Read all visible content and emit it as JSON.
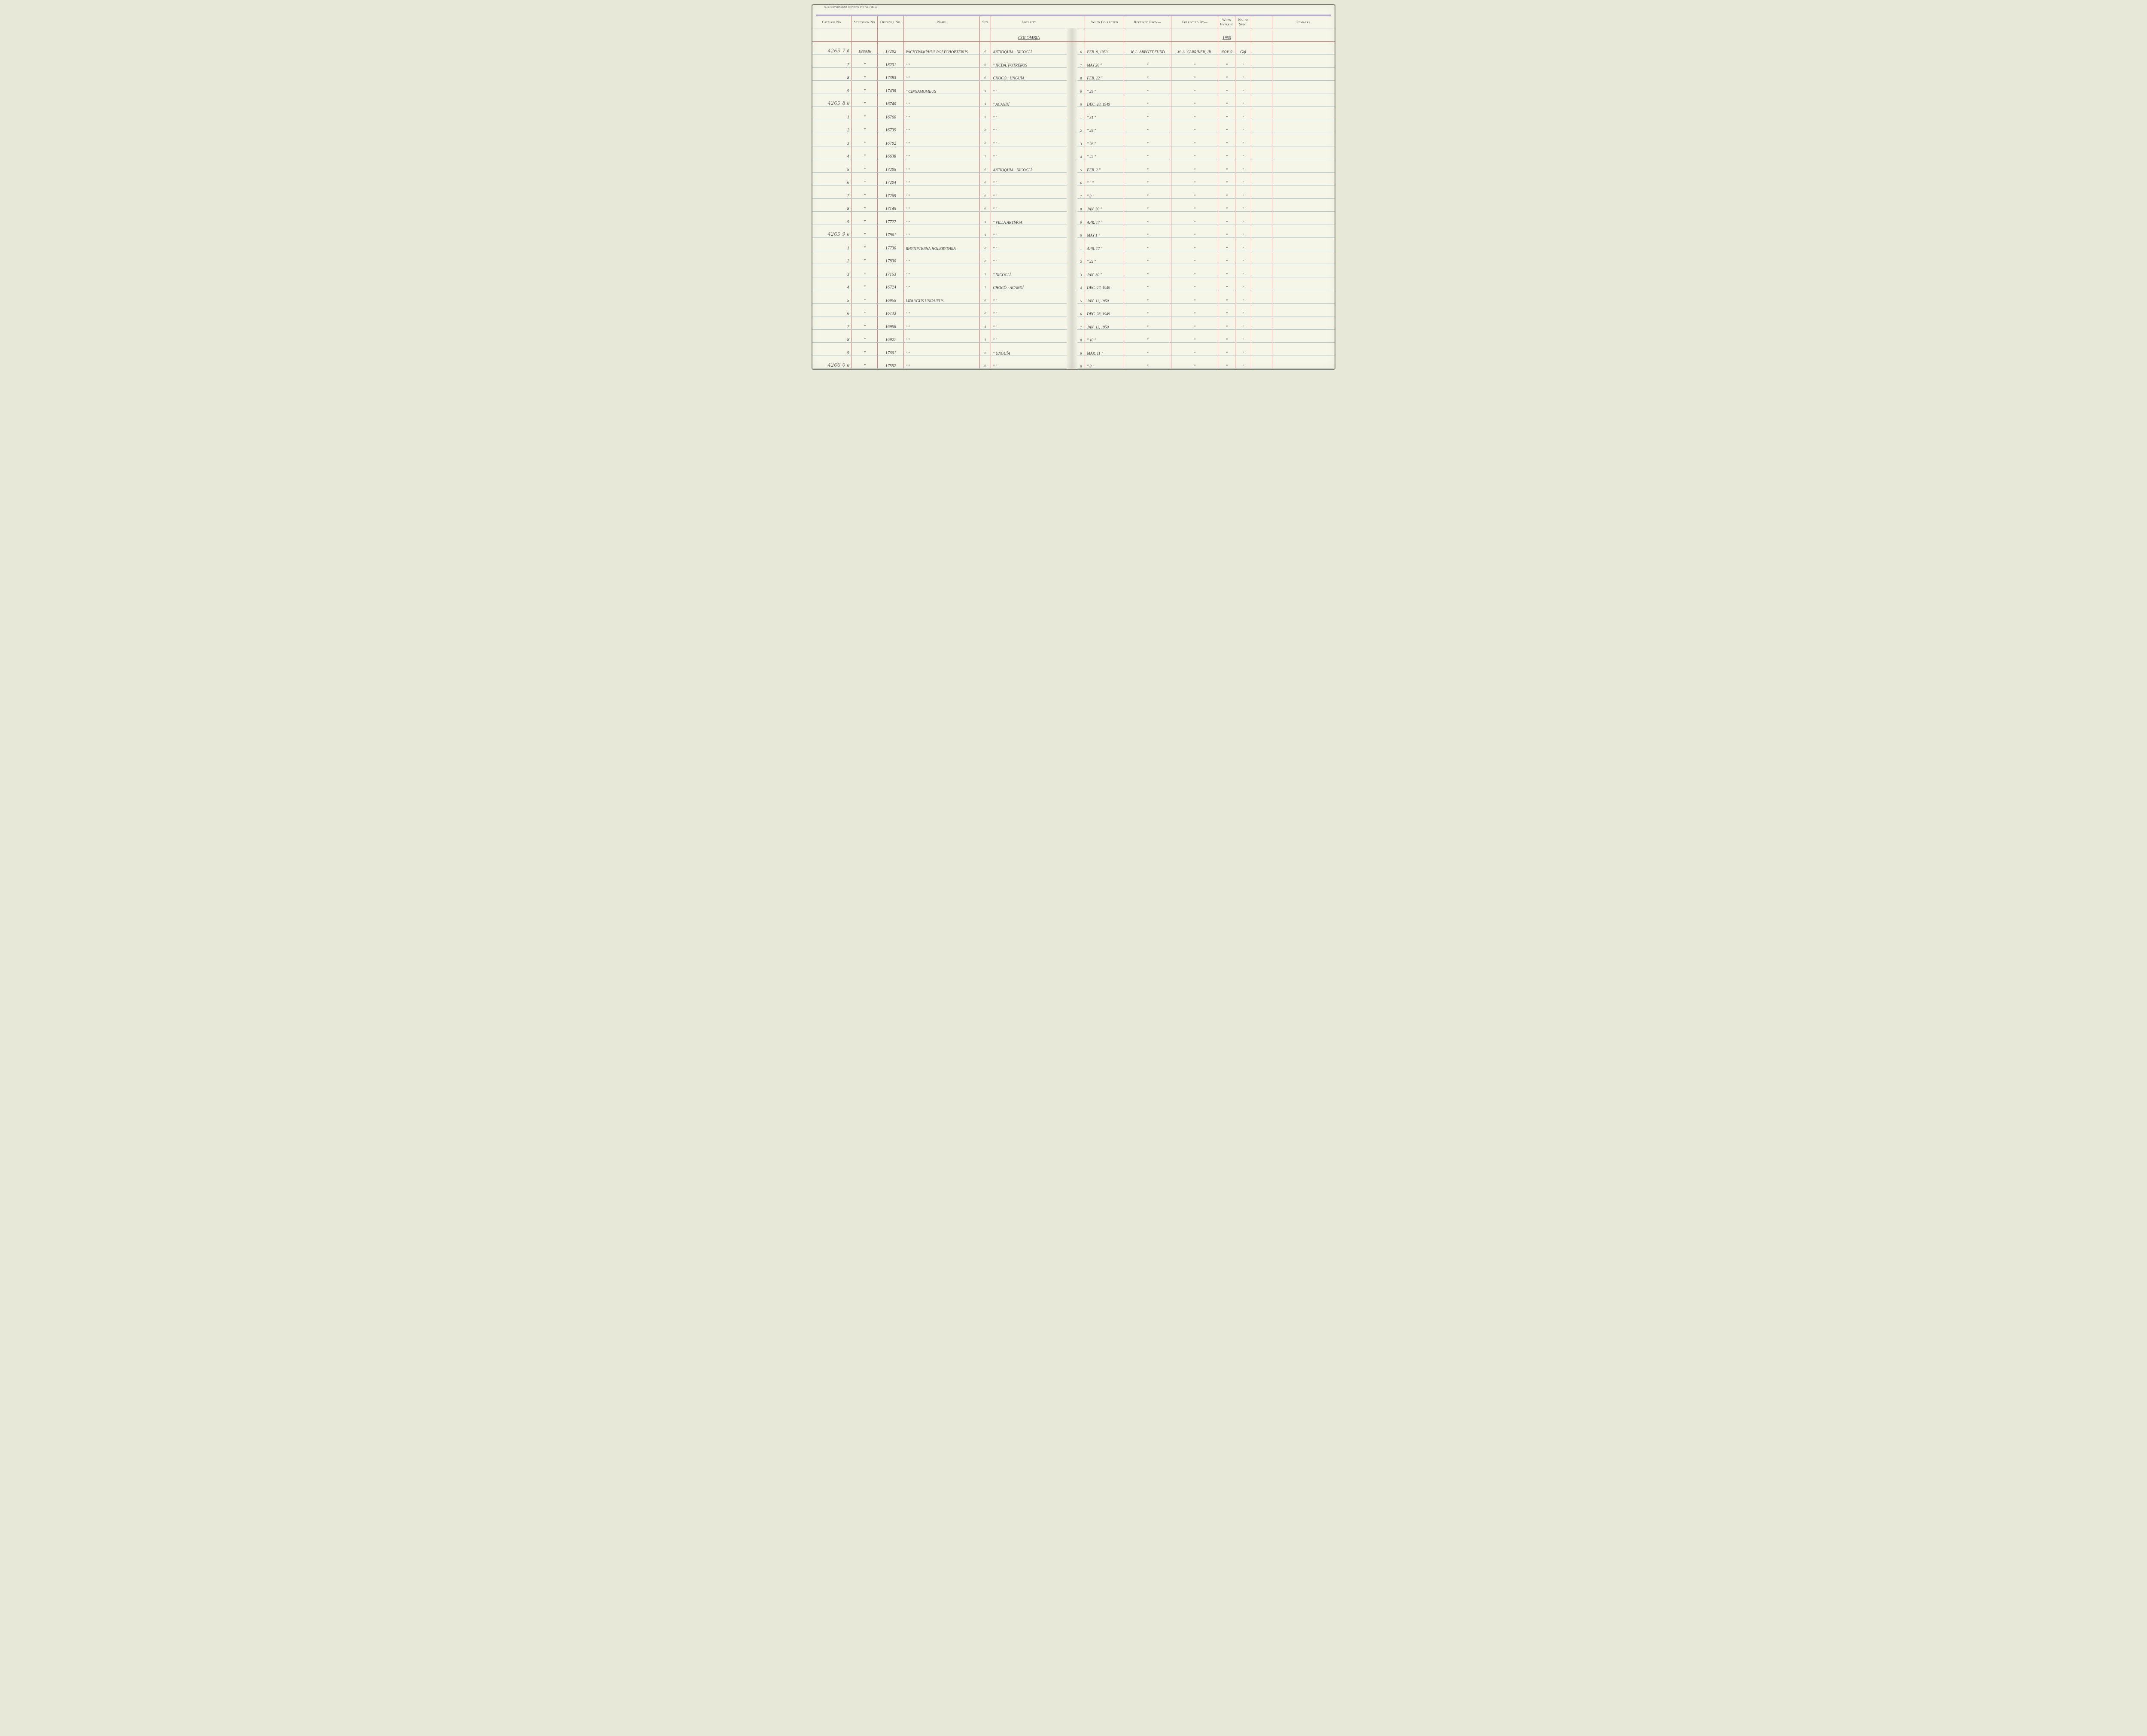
{
  "printing_office": "U. S. GOVERNMENT PRINTING OFFICE   765111",
  "headers": {
    "catalog": "Catalog\nNo.",
    "accession": "Accession\nNo.",
    "original": "Original\nNo.",
    "name": "Name",
    "sex": "Sex",
    "locality": "Locality",
    "collected": "When\nCollected",
    "received": "Received From—",
    "collectedby": "Collected By—",
    "entered": "When\nEntered",
    "nospec": "No.\nof\nSpec.",
    "remarks": "Remarks"
  },
  "header_locality_value": "COLOMBIA",
  "header_entered_value": "1950",
  "rows": [
    {
      "catalog_prefix": "4265 7",
      "catalog": "6",
      "accession": "188936",
      "original": "17292",
      "name": "PACHYRAMPHUS POLYCHOPTERUS",
      "sex": "♂",
      "locality": "ANTIOQUIA : NICOCLÍ",
      "rownum": "6",
      "collected": "FEB. 9, 1950",
      "received": "W. L. ABBOTT FUND",
      "collectedby": "M. A. CARRIKER, JR.",
      "entered": "NOV. 9",
      "nospec": "Gift"
    },
    {
      "catalog_prefix": "",
      "catalog": "7",
      "accession": "\"",
      "original": "18231",
      "name": "\"            \"",
      "sex": "♂",
      "locality": "\"        HCDA. POTREROS",
      "rownum": "7",
      "collected": "MAY 26   \"",
      "received": "\"",
      "collectedby": "\"",
      "entered": "\"",
      "nospec": "\""
    },
    {
      "catalog_prefix": "",
      "catalog": "8",
      "accession": "\"",
      "original": "17383",
      "name": "\"            \"",
      "sex": "♂",
      "locality": "CHOCÓ : UNGUÍA",
      "rownum": "8",
      "collected": "FEB. 22  \"",
      "received": "\"",
      "collectedby": "\"",
      "entered": "\"",
      "nospec": "\""
    },
    {
      "catalog_prefix": "",
      "catalog": "9",
      "accession": "\"",
      "original": "17438",
      "name": "\"     CINNAMOMEUS",
      "sex": "♀",
      "locality": "\"        \"",
      "rownum": "9",
      "collected": "\"   25   \"",
      "received": "\"",
      "collectedby": "\"",
      "entered": "\"",
      "nospec": "\""
    },
    {
      "catalog_prefix": "4265 8",
      "catalog": "0",
      "accession": "\"",
      "original": "16740",
      "name": "\"            \"",
      "sex": "♀",
      "locality": "\"     ACANDÍ",
      "rownum": "0",
      "collected": "DEC. 28, 1949",
      "received": "\"",
      "collectedby": "\"",
      "entered": "\"",
      "nospec": "\""
    },
    {
      "catalog_prefix": "",
      "catalog": "1",
      "accession": "\"",
      "original": "16760",
      "name": "\"            \"",
      "sex": "♀",
      "locality": "\"        \"",
      "rownum": "1",
      "collected": "\"   31   \"",
      "received": "\"",
      "collectedby": "\"",
      "entered": "\"",
      "nospec": "\""
    },
    {
      "catalog_prefix": "",
      "catalog": "2",
      "accession": "\"",
      "original": "16739",
      "name": "\"            \"",
      "sex": "♂",
      "locality": "\"        \"",
      "rownum": "2",
      "collected": "\"   28   \"",
      "received": "\"",
      "collectedby": "\"",
      "entered": "\"",
      "nospec": "\""
    },
    {
      "catalog_prefix": "",
      "catalog": "3",
      "accession": "\"",
      "original": "16702",
      "name": "\"            \"",
      "sex": "♂",
      "locality": "\"        \"",
      "rownum": "3",
      "collected": "\"   26   \"",
      "received": "\"",
      "collectedby": "\"",
      "entered": "\"",
      "nospec": "\""
    },
    {
      "catalog_prefix": "",
      "catalog": "4",
      "accession": "\"",
      "original": "16638",
      "name": "\"            \"",
      "sex": "♀",
      "locality": "\"        \"",
      "rownum": "4",
      "collected": "\"   22   \"",
      "received": "\"",
      "collectedby": "\"",
      "entered": "\"",
      "nospec": "\""
    },
    {
      "catalog_prefix": "",
      "catalog": "5",
      "accession": "\"",
      "original": "17205",
      "name": "\"            \"",
      "sex": "♂",
      "locality": "ANTIOQUIA : NICOCLÍ",
      "rownum": "5",
      "collected": "FEB. 2   \"",
      "received": "\"",
      "collectedby": "\"",
      "entered": "\"",
      "nospec": "\""
    },
    {
      "catalog_prefix": "",
      "catalog": "6",
      "accession": "\"",
      "original": "17204",
      "name": "\"            \"",
      "sex": "♂",
      "locality": "\"        \"",
      "rownum": "6",
      "collected": "\"   \"    \"",
      "received": "\"",
      "collectedby": "\"",
      "entered": "\"",
      "nospec": "\""
    },
    {
      "catalog_prefix": "",
      "catalog": "7",
      "accession": "\"",
      "original": "17269",
      "name": "\"            \"",
      "sex": "♂",
      "locality": "\"        \"",
      "rownum": "7",
      "collected": "\"   8    \"",
      "received": "\"",
      "collectedby": "\"",
      "entered": "\"",
      "nospec": "\""
    },
    {
      "catalog_prefix": "",
      "catalog": "8",
      "accession": "\"",
      "original": "17145",
      "name": "\"            \"",
      "sex": "♂",
      "locality": "\"        \"",
      "rownum": "8",
      "collected": "JAN. 30  \"",
      "received": "\"",
      "collectedby": "\"",
      "entered": "\"",
      "nospec": "\""
    },
    {
      "catalog_prefix": "",
      "catalog": "9",
      "accession": "\"",
      "original": "17727",
      "name": "\"            \"",
      "sex": "♀",
      "locality": "\"     VILLA ARTIAGA",
      "rownum": "9",
      "collected": "APR. 17  \"",
      "received": "\"",
      "collectedby": "\"",
      "entered": "\"",
      "nospec": "\""
    },
    {
      "catalog_prefix": "4265 9",
      "catalog": "0",
      "accession": "\"",
      "original": "17961",
      "name": "\"            \"",
      "sex": "♀",
      "locality": "\"        \"",
      "rownum": "0",
      "collected": "MAY 1    \"",
      "received": "\"",
      "collectedby": "\"",
      "entered": "\"",
      "nospec": "\""
    },
    {
      "catalog_prefix": "",
      "catalog": "1",
      "accession": "\"",
      "original": "17730",
      "name": "RHYTIPTERNA HOLERYTHRA",
      "sex": "♂",
      "locality": "\"        \"",
      "rownum": "1",
      "collected": "APR. 17  \"",
      "received": "\"",
      "collectedby": "\"",
      "entered": "\"",
      "nospec": "\""
    },
    {
      "catalog_prefix": "",
      "catalog": "2",
      "accession": "\"",
      "original": "17830",
      "name": "\"            \"",
      "sex": "♂",
      "locality": "\"        \"",
      "rownum": "2",
      "collected": "\"   22   \"",
      "received": "\"",
      "collectedby": "\"",
      "entered": "\"",
      "nospec": "\""
    },
    {
      "catalog_prefix": "",
      "catalog": "3",
      "accession": "\"",
      "original": "17153",
      "name": "\"            \"",
      "sex": "♀",
      "locality": "\"     NICOCLÍ",
      "rownum": "3",
      "collected": "JAN. 30  \"",
      "received": "\"",
      "collectedby": "\"",
      "entered": "\"",
      "nospec": "\""
    },
    {
      "catalog_prefix": "",
      "catalog": "4",
      "accession": "\"",
      "original": "16724",
      "name": "\"            \"",
      "sex": "♀",
      "locality": "CHOCÓ : ACANDÍ",
      "rownum": "4",
      "collected": "DEC. 27, 1949",
      "received": "\"",
      "collectedby": "\"",
      "entered": "\"",
      "nospec": "\""
    },
    {
      "catalog_prefix": "",
      "catalog": "5",
      "accession": "\"",
      "original": "16955",
      "name": "LIPAUGUS UNIRUFUS",
      "sex": "♂",
      "locality": "\"        \"",
      "rownum": "5",
      "collected": "JAN. 11, 1950",
      "received": "\"",
      "collectedby": "\"",
      "entered": "\"",
      "nospec": "\""
    },
    {
      "catalog_prefix": "",
      "catalog": "6",
      "accession": "\"",
      "original": "16733",
      "name": "\"            \"",
      "sex": "♂",
      "locality": "\"        \"",
      "rownum": "6",
      "collected": "DEC. 28, 1949",
      "received": "\"",
      "collectedby": "\"",
      "entered": "\"",
      "nospec": "\""
    },
    {
      "catalog_prefix": "",
      "catalog": "7",
      "accession": "\"",
      "original": "16956",
      "name": "\"            \"",
      "sex": "♀",
      "locality": "\"        \"",
      "rownum": "7",
      "collected": "JAN. 11, 1950",
      "received": "\"",
      "collectedby": "\"",
      "entered": "\"",
      "nospec": "\""
    },
    {
      "catalog_prefix": "",
      "catalog": "8",
      "accession": "\"",
      "original": "16927",
      "name": "\"            \"",
      "sex": "♀",
      "locality": "\"        \"",
      "rownum": "8",
      "collected": "\"   10   \"",
      "received": "\"",
      "collectedby": "\"",
      "entered": "\"",
      "nospec": "\""
    },
    {
      "catalog_prefix": "",
      "catalog": "9",
      "accession": "\"",
      "original": "17601",
      "name": "\"            \"",
      "sex": "♂",
      "locality": "\"     UNGUÍA",
      "rownum": "9",
      "collected": "MAR. 11  \"",
      "received": "\"",
      "collectedby": "\"",
      "entered": "\"",
      "nospec": "\""
    },
    {
      "catalog_prefix": "4266 0",
      "catalog": "0",
      "accession": "\"",
      "original": "17557",
      "name": "\"            \"",
      "sex": "♂",
      "locality": "\"        \"",
      "rownum": "0",
      "collected": "\"   8    \"",
      "received": "\"",
      "collectedby": "\"",
      "entered": "\"",
      "nospec": "\""
    }
  ],
  "colors": {
    "paper": "#f5f5e8",
    "rule_blue": "#a8c8d0",
    "rule_pink": "#e07878",
    "ink": "#3a3a3a",
    "prefix": "#666666",
    "border_violet": "#9b8fb8"
  }
}
